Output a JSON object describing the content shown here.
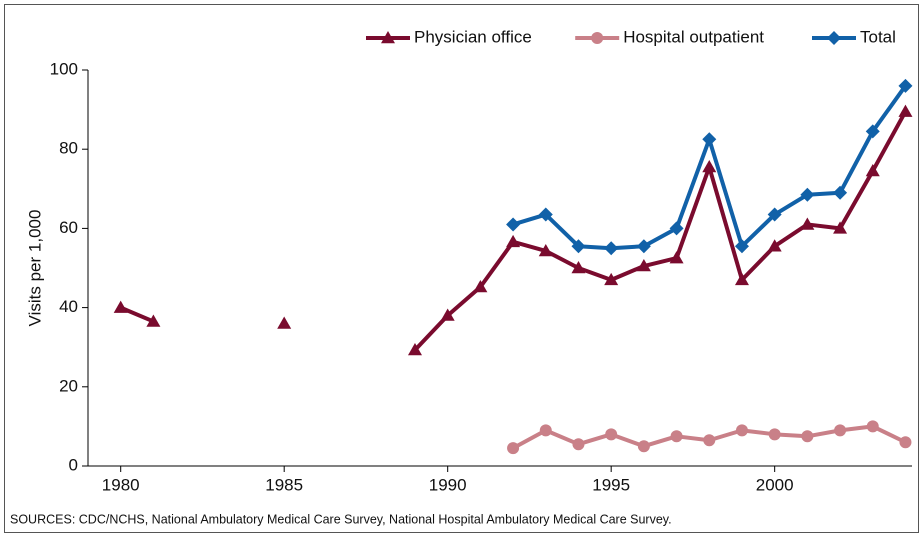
{
  "chart_data": {
    "type": "line",
    "y_label": "Visits per 1,000",
    "source": "SOURCES: CDC/NCHS, National Ambulatory Medical Care Survey, National Hospital Ambulatory Medical Care Survey.",
    "x": [
      1980,
      1981,
      1982,
      1983,
      1984,
      1985,
      1986,
      1987,
      1988,
      1989,
      1990,
      1991,
      1992,
      1993,
      1994,
      1995,
      1996,
      1997,
      1998,
      1999,
      2000,
      2001,
      2002,
      2003,
      2004
    ],
    "series": [
      {
        "name": "Physician office",
        "color": "#7a0b2e",
        "marker": "triangle",
        "values": [
          40,
          36.5,
          null,
          null,
          null,
          36,
          null,
          null,
          null,
          29.3,
          38,
          45.2,
          56.6,
          54.3,
          50,
          47,
          50.5,
          52.5,
          75.5,
          47,
          55.5,
          61,
          60,
          74.5,
          89.5
        ]
      },
      {
        "name": "Hospital outpatient",
        "color": "#c98088",
        "marker": "circle",
        "values": [
          null,
          null,
          null,
          null,
          null,
          null,
          null,
          null,
          null,
          null,
          null,
          null,
          4.5,
          9,
          5.5,
          8,
          5,
          7.5,
          6.5,
          9,
          8,
          7.5,
          9,
          10,
          6
        ]
      },
      {
        "name": "Total",
        "color": "#1161a8",
        "marker": "diamond",
        "values": [
          null,
          null,
          null,
          null,
          null,
          null,
          null,
          null,
          null,
          null,
          null,
          null,
          61,
          63.5,
          55.5,
          55,
          55.5,
          60,
          82.5,
          55.5,
          63.5,
          68.5,
          69,
          84.5,
          96
        ]
      }
    ],
    "xlim": [
      1979,
      2004.2
    ],
    "xticks": [
      1980,
      1985,
      1990,
      1995,
      2000
    ],
    "ylim": [
      0,
      100
    ],
    "yticks": [
      0,
      20,
      40,
      60,
      80,
      100
    ],
    "legend": "top-right"
  }
}
